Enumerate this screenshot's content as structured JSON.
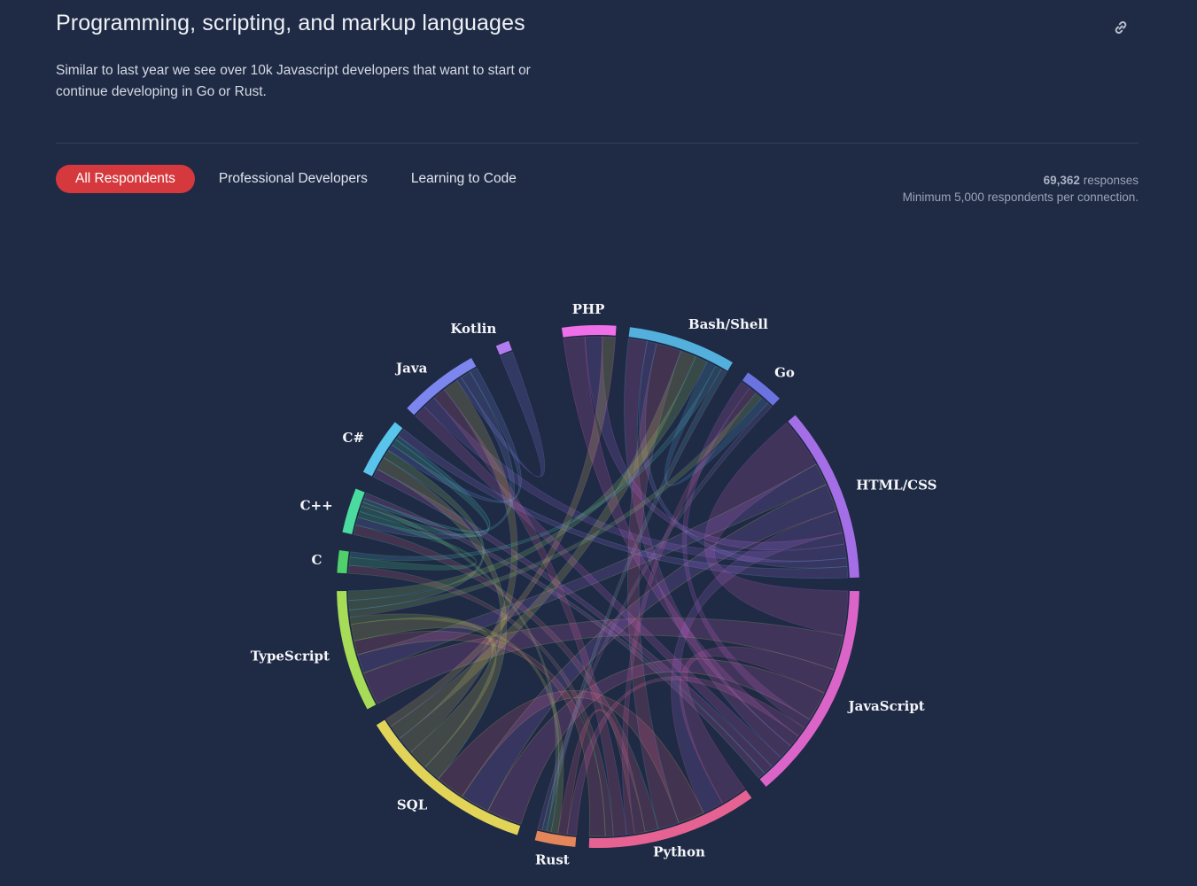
{
  "header": {
    "title": "Programming, scripting, and markup languages",
    "subtitle": "Similar to last year we see over 10k Javascript developers that want to start or continue developing in Go or Rust.",
    "link_icon": "link-icon"
  },
  "tabs": [
    {
      "label": "All Respondents",
      "active": true
    },
    {
      "label": "Professional Developers",
      "active": false
    },
    {
      "label": "Learning to Code",
      "active": false
    }
  ],
  "meta": {
    "responses_count": "69,362",
    "responses_label": "responses",
    "note": "Minimum 5,000 respondents per connection."
  },
  "colors": {
    "background": "#1f2a44",
    "active_tab": "#d6393d"
  },
  "chart_data": {
    "type": "chord",
    "title": "",
    "legend": "none",
    "groups": [
      {
        "name": "PHP",
        "color": "#ef6fe8",
        "start": -8,
        "end": 4
      },
      {
        "name": "Bash/Shell",
        "color": "#53b0dc",
        "start": 7,
        "end": 31
      },
      {
        "name": "Go",
        "color": "#6b73e0",
        "start": 35,
        "end": 44
      },
      {
        "name": "HTML/CSS",
        "color": "#a46ee6",
        "start": 49,
        "end": 88
      },
      {
        "name": "JavaScript",
        "color": "#db64c9",
        "start": 91,
        "end": 140
      },
      {
        "name": "Python",
        "color": "#e56292",
        "start": 144,
        "end": 182
      },
      {
        "name": "Rust",
        "color": "#e5865a",
        "start": 185,
        "end": 194
      },
      {
        "name": "SQL",
        "color": "#e1d458",
        "start": 198,
        "end": 238
      },
      {
        "name": "TypeScript",
        "color": "#a6dc58",
        "start": 242,
        "end": 269
      },
      {
        "name": "C",
        "color": "#4fd06d",
        "start": 273,
        "end": 278
      },
      {
        "name": "C++",
        "color": "#4bdba0",
        "start": 282,
        "end": 292
      },
      {
        "name": "C#",
        "color": "#59c4ec",
        "start": 296,
        "end": 309
      },
      {
        "name": "Java",
        "color": "#7d86ef",
        "start": 313,
        "end": 331
      },
      {
        "name": "Kotlin",
        "color": "#b07cf0",
        "start": 337,
        "end": 340
      }
    ],
    "links": [
      [
        "JavaScript",
        "HTML/CSS",
        18
      ],
      [
        "JavaScript",
        "TypeScript",
        14
      ],
      [
        "JavaScript",
        "Python",
        10
      ],
      [
        "JavaScript",
        "SQL",
        12
      ],
      [
        "JavaScript",
        "Go",
        4
      ],
      [
        "JavaScript",
        "Rust",
        4
      ],
      [
        "JavaScript",
        "PHP",
        5
      ],
      [
        "JavaScript",
        "Bash/Shell",
        6
      ],
      [
        "JavaScript",
        "Java",
        5
      ],
      [
        "JavaScript",
        "C#",
        4
      ],
      [
        "HTML/CSS",
        "TypeScript",
        8
      ],
      [
        "HTML/CSS",
        "SQL",
        10
      ],
      [
        "HTML/CSS",
        "Python",
        8
      ],
      [
        "HTML/CSS",
        "PHP",
        4
      ],
      [
        "HTML/CSS",
        "Java",
        5
      ],
      [
        "HTML/CSS",
        "Bash/Shell",
        3
      ],
      [
        "Python",
        "SQL",
        10
      ],
      [
        "Python",
        "Bash/Shell",
        8
      ],
      [
        "Python",
        "C++",
        5
      ],
      [
        "Python",
        "Rust",
        4
      ],
      [
        "Python",
        "Go",
        3
      ],
      [
        "Python",
        "Java",
        5
      ],
      [
        "Python",
        "C",
        3
      ],
      [
        "Python",
        "TypeScript",
        6
      ],
      [
        "SQL",
        "C#",
        6
      ],
      [
        "SQL",
        "TypeScript",
        7
      ],
      [
        "SQL",
        "Java",
        6
      ],
      [
        "SQL",
        "Bash/Shell",
        5
      ],
      [
        "SQL",
        "PHP",
        3
      ],
      [
        "TypeScript",
        "Rust",
        3
      ],
      [
        "TypeScript",
        "Go",
        3
      ],
      [
        "TypeScript",
        "C#",
        4
      ],
      [
        "TypeScript",
        "Bash/Shell",
        4
      ],
      [
        "Java",
        "Kotlin",
        2
      ],
      [
        "Java",
        "C++",
        4
      ],
      [
        "Java",
        "C#",
        3
      ],
      [
        "C++",
        "C",
        3
      ],
      [
        "C++",
        "C#",
        3
      ],
      [
        "C++",
        "Rust",
        2
      ],
      [
        "Bash/Shell",
        "Go",
        3
      ],
      [
        "Bash/Shell",
        "C",
        2
      ],
      [
        "Bash/Shell",
        "Rust",
        2
      ],
      [
        "C#",
        "C++",
        2
      ],
      [
        "Go",
        "Rust",
        2
      ],
      [
        "HTML/CSS",
        "C#",
        4
      ],
      [
        "JavaScript",
        "C++",
        3
      ]
    ]
  }
}
